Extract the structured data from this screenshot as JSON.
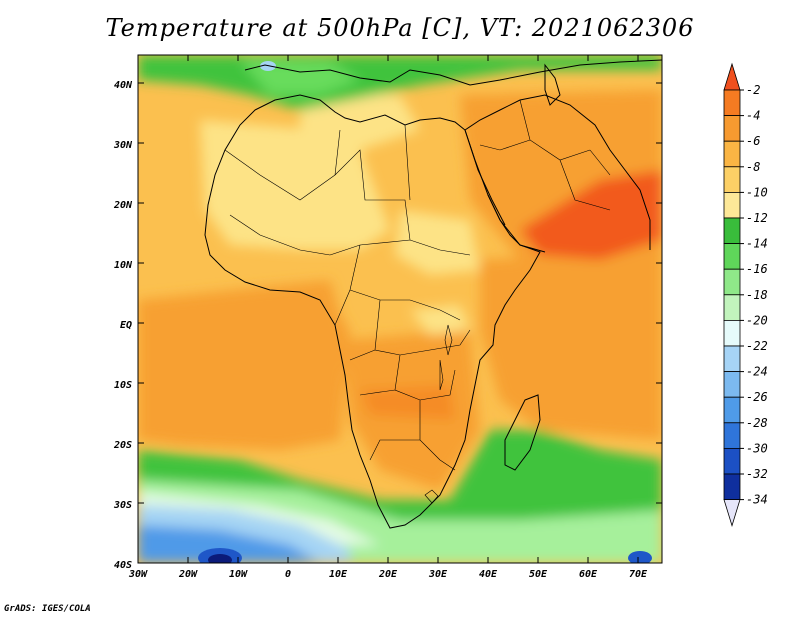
{
  "title": "Temperature at 500hPa [C], VT: 2021062306",
  "footer": "GrADS: IGES/COLA",
  "colors": {
    "orange_light": "#fbc04f",
    "orange": "#f7a031",
    "orange_dark": "#f58c25",
    "red": "#f25a1f",
    "yellow": "#fde386",
    "green_dark": "#3fc33e",
    "green": "#68dc5c",
    "green_light": "#a6f09b",
    "pale": "#e4fbe4",
    "blue_light": "#a5d4f4",
    "blue": "#4f9ae8",
    "blue_dark": "#1f57c8",
    "navy": "#0b1b7a"
  },
  "map": {
    "lon_labels": [
      "30W",
      "20W",
      "10W",
      "0",
      "10E",
      "20E",
      "30E",
      "40E",
      "50E",
      "60E",
      "70E"
    ],
    "lat_labels": [
      "40N",
      "30N",
      "20N",
      "10N",
      "EQ",
      "10S",
      "20S",
      "30S",
      "40S"
    ]
  },
  "colorbar": {
    "levels": [
      "-2",
      "-4",
      "-6",
      "-8",
      "-10",
      "-12",
      "-14",
      "-16",
      "-18",
      "-20",
      "-22",
      "-24",
      "-26",
      "-28",
      "-30",
      "-32",
      "-34"
    ],
    "colors": [
      "#f0501f",
      "#f57b22",
      "#f79a30",
      "#fab544",
      "#fcd066",
      "#fde898",
      "#39bd3b",
      "#5fd65a",
      "#8fe889",
      "#c2f4bd",
      "#e6fbfb",
      "#a6d4f6",
      "#7cbaf0",
      "#4f9be8",
      "#2f75da",
      "#1c50c4",
      "#0f2f9e",
      "#08176a"
    ]
  }
}
